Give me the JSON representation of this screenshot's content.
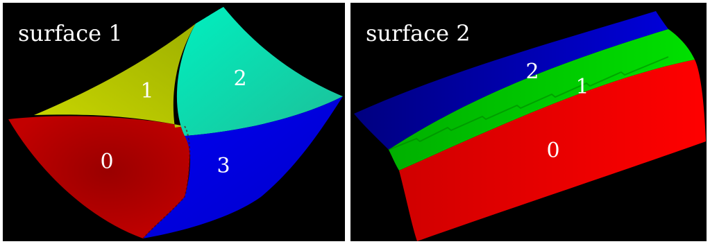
{
  "panels": [
    {
      "title": "surface 1",
      "regions": [
        {
          "label": "0",
          "color": "#b00000"
        },
        {
          "label": "1",
          "color": "#b5c400"
        },
        {
          "label": "2",
          "color": "#12d9ad"
        },
        {
          "label": "3",
          "color": "#0000ee"
        }
      ]
    },
    {
      "title": "surface 2",
      "regions": [
        {
          "label": "2",
          "color": "#0000c8"
        },
        {
          "label": "1",
          "color": "#00d000"
        },
        {
          "label": "0",
          "color": "#f00000"
        }
      ]
    }
  ]
}
